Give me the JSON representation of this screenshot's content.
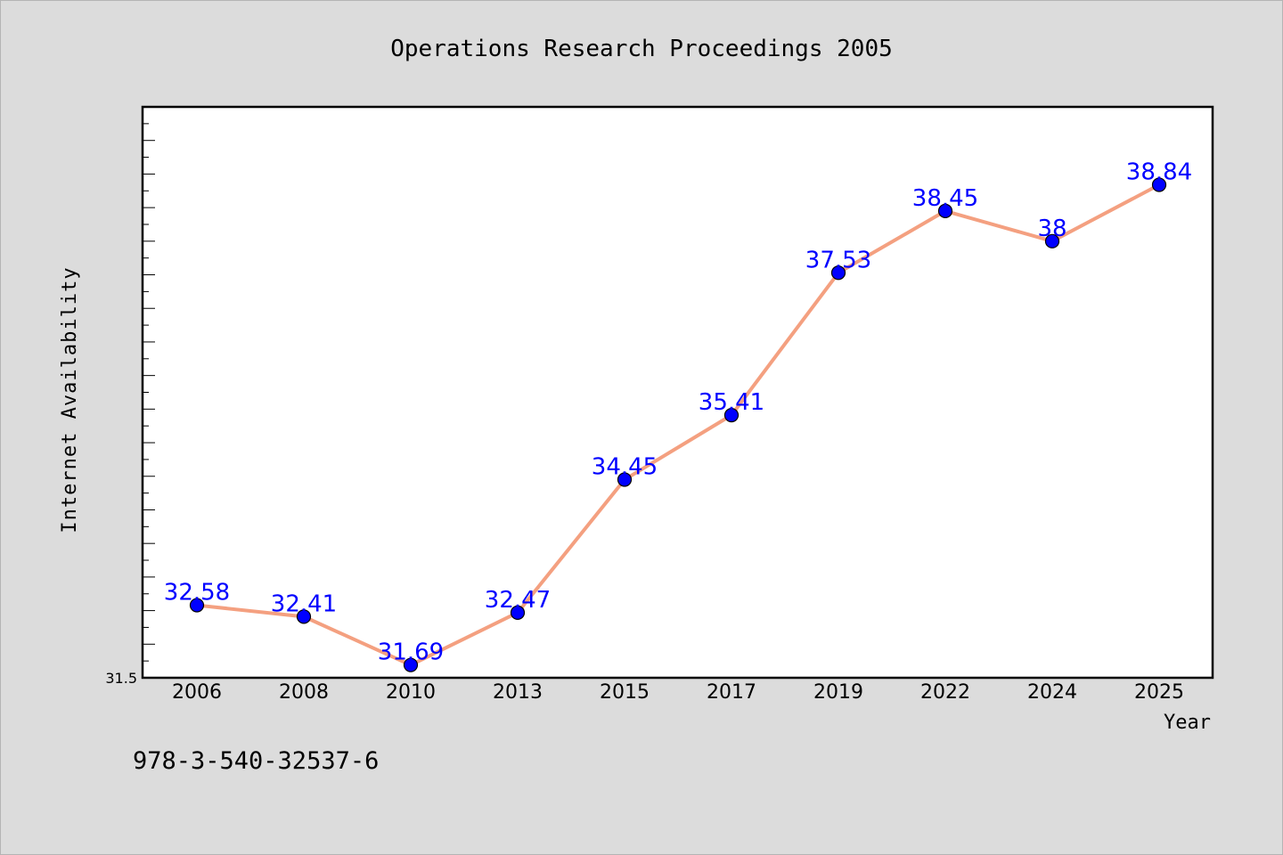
{
  "chart_data": {
    "type": "line",
    "title": "Operations Research Proceedings 2005",
    "xlabel": "Year",
    "ylabel": "Internet Availability",
    "categories": [
      "2006",
      "2008",
      "2010",
      "2013",
      "2015",
      "2017",
      "2019",
      "2022",
      "2024",
      "2025"
    ],
    "series": [
      {
        "values": [
          32.58,
          32.41,
          31.69,
          32.47,
          34.45,
          35.41,
          37.53,
          38.45,
          38,
          38.84
        ],
        "labels": [
          "32.58",
          "32.41",
          "31.69",
          "32.47",
          "34.45",
          "35.41",
          "37.53",
          "38.45",
          "38",
          "38.84"
        ],
        "line_color": "#f4a080",
        "marker_color": "#0000ff",
        "label_color": "#0000ff"
      }
    ],
    "ylim": [
      31.5,
      40
    ],
    "y_tick_labels": [
      "31.5"
    ],
    "grid": false,
    "legend": "none"
  },
  "footer_text": "978-3-540-32537-6",
  "colors": {
    "background": "#dcdcdc",
    "plot_background": "#ffffff",
    "axis": "#000000",
    "text": "#000000"
  }
}
